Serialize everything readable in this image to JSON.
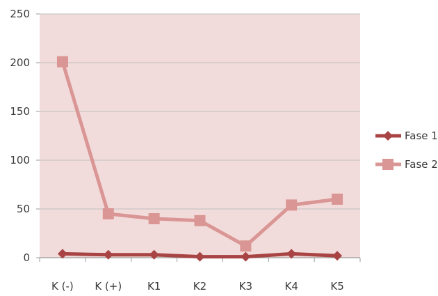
{
  "chart_data": {
    "type": "line",
    "categories": [
      "K (-)",
      "K (+)",
      "K1",
      "K2",
      "K3",
      "K4",
      "K5"
    ],
    "series": [
      {
        "name": "Fase 1",
        "values": [
          4,
          3,
          3,
          1,
          1,
          4,
          2
        ],
        "color": "#a94444",
        "marker": "diamond"
      },
      {
        "name": "Fase 2",
        "values": [
          201,
          45,
          40,
          38,
          12,
          54,
          60
        ],
        "color": "#d99694",
        "marker": "square"
      }
    ],
    "ylim": [
      0,
      250
    ],
    "yticks": [
      0,
      50,
      100,
      150,
      200,
      250
    ],
    "grid": true,
    "legend": "right",
    "plot_background": "#f2dcdb",
    "gridline_color": "#bfbfbf"
  }
}
